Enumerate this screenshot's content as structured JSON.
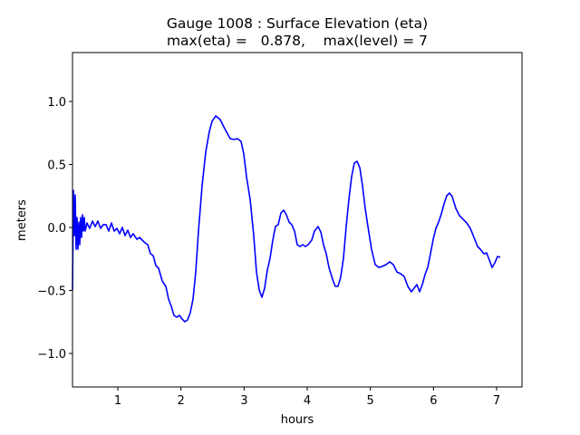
{
  "chart_data": {
    "type": "line",
    "title_line1": "Gauge 1008 : Surface Elevation (eta)",
    "title_line2": "max(eta) =   0.878,    max(level) = 7",
    "xlabel": "hours",
    "ylabel": "meters",
    "xlim": [
      0.282,
      7.402
    ],
    "ylim": [
      -1.266,
      1.388
    ],
    "xticks": [
      1,
      2,
      3,
      4,
      5,
      6,
      7
    ],
    "xtick_labels": [
      "1",
      "2",
      "3",
      "4",
      "5",
      "6",
      "7"
    ],
    "yticks": [
      -1.0,
      -0.5,
      0.0,
      0.5,
      1.0
    ],
    "ytick_labels": [
      "−1.0",
      "−0.5",
      "0.0",
      "0.5",
      "1.0"
    ],
    "grid": false,
    "series": [
      {
        "name": "eta",
        "color": "#0000ff",
        "x": [
          0.282,
          0.297,
          0.311,
          0.325,
          0.34,
          0.354,
          0.368,
          0.383,
          0.397,
          0.411,
          0.426,
          0.44,
          0.454,
          0.469,
          0.483,
          0.512,
          0.555,
          0.598,
          0.641,
          0.684,
          0.727,
          0.77,
          0.813,
          0.856,
          0.899,
          0.942,
          0.986,
          1.029,
          1.072,
          1.115,
          1.158,
          1.201,
          1.244,
          1.301,
          1.344,
          1.387,
          1.431,
          1.474,
          1.517,
          1.56,
          1.603,
          1.646,
          1.703,
          1.761,
          1.804,
          1.847,
          1.89,
          1.933,
          1.976,
          2.019,
          2.062,
          2.105,
          2.148,
          2.191,
          2.234,
          2.277,
          2.335,
          2.392,
          2.45,
          2.493,
          2.55,
          2.622,
          2.694,
          2.78,
          2.837,
          2.895,
          2.952,
          2.995,
          3.038,
          3.096,
          3.153,
          3.196,
          3.239,
          3.282,
          3.325,
          3.368,
          3.411,
          3.454,
          3.497,
          3.54,
          3.583,
          3.626,
          3.669,
          3.713,
          3.756,
          3.799,
          3.842,
          3.885,
          3.928,
          3.971,
          4.014,
          4.071,
          4.115,
          4.172,
          4.215,
          4.258,
          4.301,
          4.344,
          4.401,
          4.444,
          4.487,
          4.53,
          4.574,
          4.617,
          4.66,
          4.703,
          4.746,
          4.789,
          4.832,
          4.875,
          4.918,
          4.961,
          5.019,
          5.076,
          5.134,
          5.191,
          5.249,
          5.306,
          5.363,
          5.421,
          5.478,
          5.536,
          5.593,
          5.65,
          5.694,
          5.737,
          5.78,
          5.823,
          5.866,
          5.909,
          5.952,
          5.995,
          6.038,
          6.081,
          6.124,
          6.167,
          6.21,
          6.253,
          6.296,
          6.354,
          6.411,
          6.469,
          6.526,
          6.584,
          6.641,
          6.698,
          6.741,
          6.799,
          6.842,
          6.885,
          6.928,
          6.971,
          7.014,
          7.057
        ],
        "y": [
          -0.496,
          0.295,
          -0.065,
          0.259,
          -0.173,
          0.079,
          -0.173,
          0.043,
          -0.137,
          0.079,
          -0.079,
          0.101,
          -0.029,
          0.079,
          -0.029,
          0.036,
          -0.007,
          0.05,
          0.007,
          0.05,
          -0.007,
          0.022,
          0.022,
          -0.029,
          0.036,
          -0.029,
          -0.007,
          -0.05,
          0.0,
          -0.065,
          -0.022,
          -0.079,
          -0.05,
          -0.094,
          -0.079,
          -0.101,
          -0.122,
          -0.137,
          -0.209,
          -0.223,
          -0.302,
          -0.324,
          -0.424,
          -0.468,
          -0.568,
          -0.626,
          -0.698,
          -0.712,
          -0.698,
          -0.727,
          -0.748,
          -0.734,
          -0.676,
          -0.568,
          -0.353,
          -0.029,
          0.331,
          0.597,
          0.763,
          0.842,
          0.885,
          0.856,
          0.784,
          0.705,
          0.698,
          0.705,
          0.683,
          0.583,
          0.403,
          0.223,
          -0.065,
          -0.353,
          -0.496,
          -0.554,
          -0.482,
          -0.338,
          -0.245,
          -0.101,
          0.007,
          0.022,
          0.115,
          0.137,
          0.101,
          0.043,
          0.022,
          -0.029,
          -0.137,
          -0.151,
          -0.137,
          -0.151,
          -0.137,
          -0.101,
          -0.029,
          0.007,
          -0.036,
          -0.137,
          -0.209,
          -0.317,
          -0.41,
          -0.468,
          -0.468,
          -0.396,
          -0.245,
          0.007,
          0.223,
          0.403,
          0.511,
          0.525,
          0.475,
          0.331,
          0.151,
          0.007,
          -0.173,
          -0.295,
          -0.317,
          -0.309,
          -0.295,
          -0.273,
          -0.295,
          -0.353,
          -0.367,
          -0.389,
          -0.468,
          -0.511,
          -0.482,
          -0.453,
          -0.511,
          -0.453,
          -0.374,
          -0.317,
          -0.209,
          -0.094,
          -0.007,
          0.043,
          0.108,
          0.187,
          0.252,
          0.273,
          0.245,
          0.151,
          0.094,
          0.065,
          0.036,
          -0.007,
          -0.079,
          -0.151,
          -0.173,
          -0.209,
          -0.202,
          -0.259,
          -0.317,
          -0.281,
          -0.23,
          -0.237
        ]
      }
    ]
  }
}
